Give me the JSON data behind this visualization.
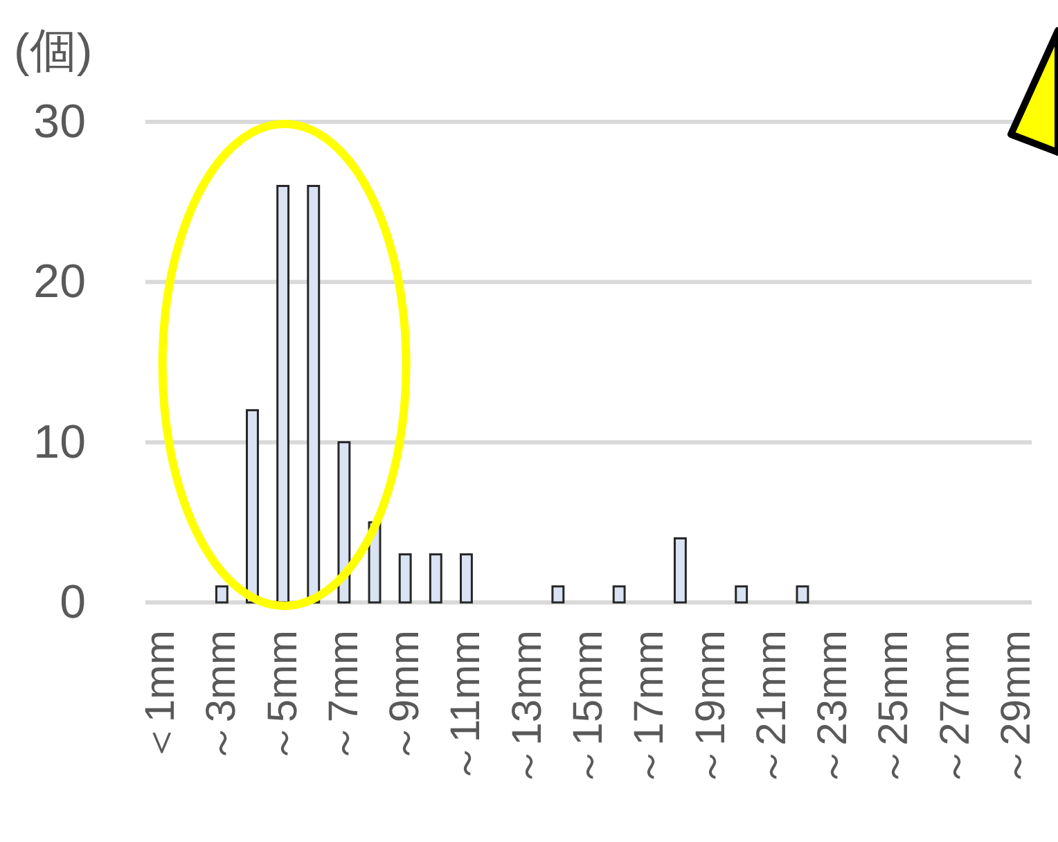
{
  "chart_data": {
    "type": "bar",
    "ylabel": "(個)",
    "categories": [
      "＜1mm",
      null,
      "～3mm",
      null,
      "～5mm",
      null,
      "～7mm",
      null,
      "～9mm",
      null,
      "～11mm",
      null,
      "～13mm",
      null,
      "～15mm",
      null,
      "～17mm",
      null,
      "～19mm",
      null,
      "～21mm",
      null,
      "～23mm",
      null,
      "～25mm",
      null,
      "～27mm",
      null,
      "～29mm"
    ],
    "values": [
      0,
      0,
      1,
      12,
      26,
      26,
      10,
      5,
      3,
      3,
      3,
      0,
      0,
      1,
      0,
      1,
      0,
      4,
      0,
      1,
      0,
      1,
      0,
      0,
      0,
      0,
      0,
      0,
      0
    ],
    "color": "#dae3f3",
    "ylim": [
      0,
      30
    ],
    "yticks": [
      0,
      10,
      20,
      30
    ],
    "grid": "y"
  }
}
